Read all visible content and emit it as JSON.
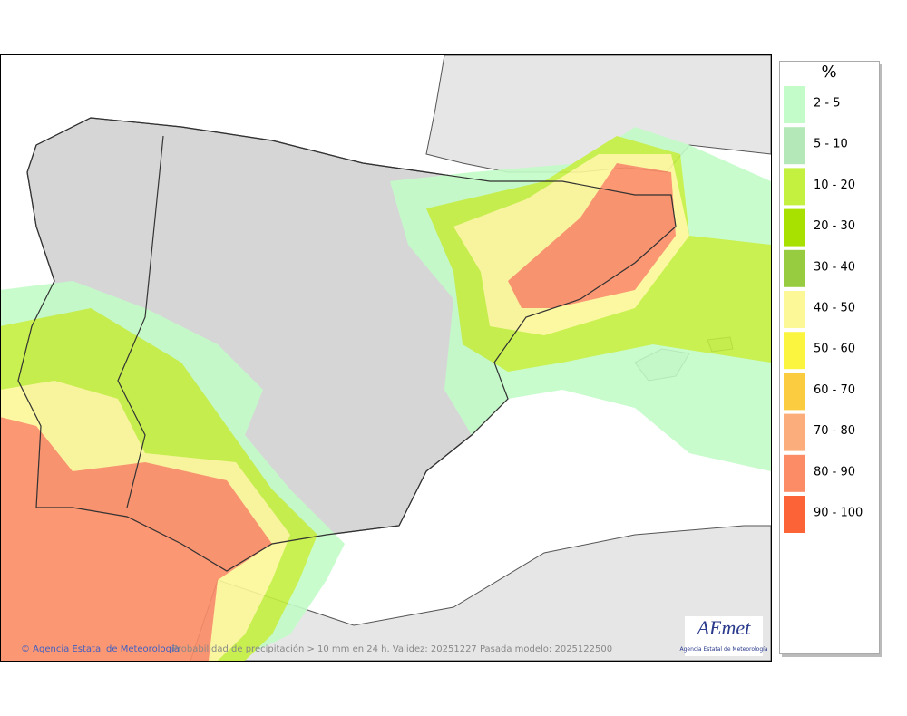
{
  "legend": {
    "title": "%",
    "items": [
      {
        "label": "2 - 5",
        "color": "#c3fcc8"
      },
      {
        "label": "5 - 10",
        "color": "#b5e8b9"
      },
      {
        "label": "10 - 20",
        "color": "#c4f040"
      },
      {
        "label": "20 - 30",
        "color": "#a8e000"
      },
      {
        "label": "30 - 40",
        "color": "#98cc40"
      },
      {
        "label": "40 - 50",
        "color": "#fcf898"
      },
      {
        "label": "50 - 60",
        "color": "#fcf540"
      },
      {
        "label": "60 - 70",
        "color": "#fccc40"
      },
      {
        "label": "70 - 80",
        "color": "#fcad7c"
      },
      {
        "label": "80 - 90",
        "color": "#fc8c66"
      },
      {
        "label": "90 - 100",
        "color": "#fc6438"
      }
    ]
  },
  "footer": {
    "credit": "© Agencia Estatal de Meteorología",
    "caption": "Probabilidad de precipitación > 10 mm en 24 h. Validez: 20251227 Pasada modelo: 2025122500"
  },
  "logo": {
    "name": "AEmet",
    "subtitle": "Agencia Estatal de Meteorología"
  }
}
